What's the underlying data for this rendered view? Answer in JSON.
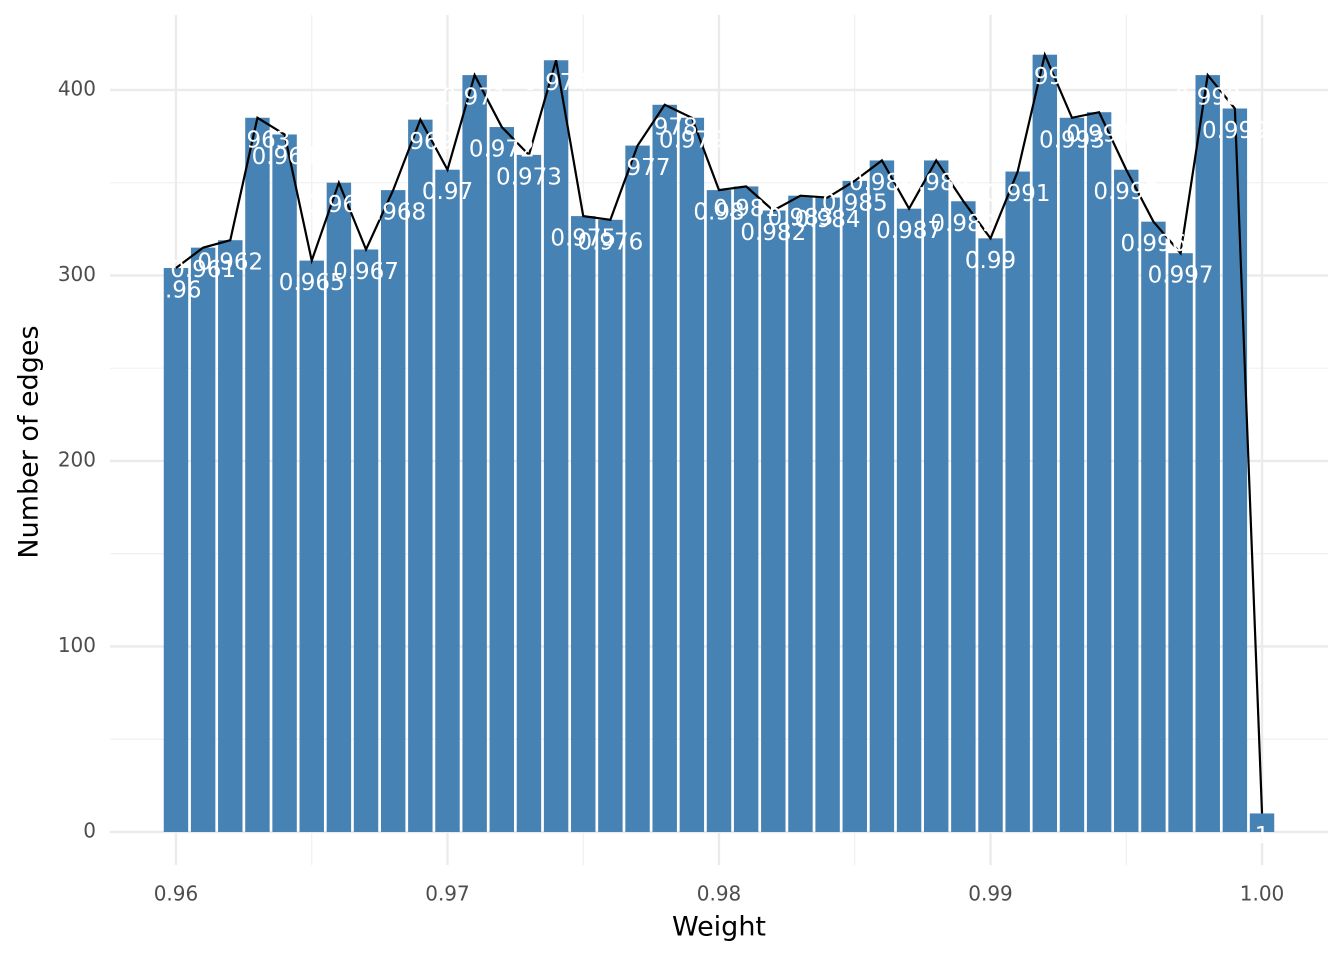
{
  "chart_data": {
    "type": "bar",
    "x_label": "Weight",
    "y_label": "Number of edges",
    "x": [
      0.96,
      0.961,
      0.962,
      0.963,
      0.964,
      0.965,
      0.966,
      0.967,
      0.968,
      0.969,
      0.97,
      0.971,
      0.972,
      0.973,
      0.974,
      0.975,
      0.976,
      0.977,
      0.978,
      0.979,
      0.98,
      0.981,
      0.982,
      0.983,
      0.984,
      0.985,
      0.986,
      0.987,
      0.988,
      0.989,
      0.99,
      0.991,
      0.992,
      0.993,
      0.994,
      0.995,
      0.996,
      0.997,
      0.998,
      0.999,
      1
    ],
    "values": [
      304,
      315,
      319,
      385,
      376,
      308,
      350,
      314,
      346,
      384,
      357,
      408,
      380,
      365,
      416,
      332,
      330,
      370,
      392,
      385,
      346,
      348,
      335,
      343,
      342,
      351,
      362,
      336,
      362,
      340,
      320,
      356,
      419,
      385,
      388,
      357,
      329,
      312,
      408,
      390,
      10
    ],
    "color": "#4682b4",
    "line": true,
    "line_color": "#000000",
    "xlim": [
      0.95757,
      1.00243
    ],
    "xticks": [
      0.96,
      0.97,
      0.98,
      0.99,
      {
        "value": 1,
        "label": "1.00"
      }
    ],
    "x_minor_ticks": [
      0.965,
      0.975,
      0.985,
      0.995
    ],
    "ylim": [
      -17.8,
      440.4
    ],
    "yticks": [
      0,
      100,
      200,
      300,
      400
    ],
    "y_minor_ticks": [
      50,
      150,
      250,
      350
    ],
    "grid": true
  }
}
